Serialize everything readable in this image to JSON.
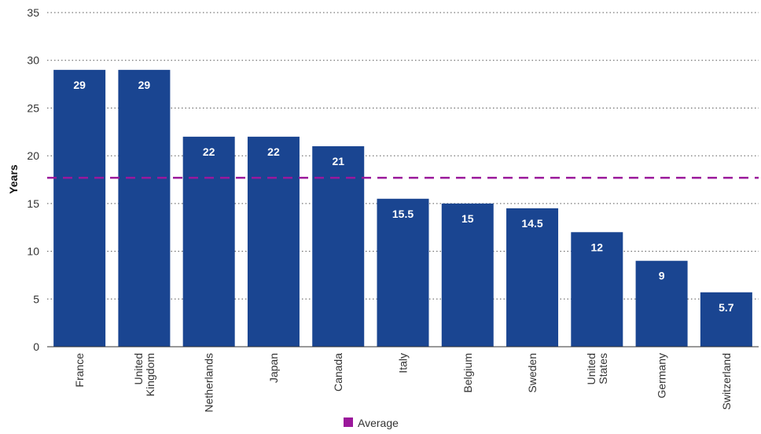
{
  "chart_data": {
    "type": "bar",
    "categories": [
      "France",
      "United Kingdom",
      "Netherlands",
      "Japan",
      "Canada",
      "Italy",
      "Belgium",
      "Sweden",
      "United States",
      "Germany",
      "Switzerland"
    ],
    "category_lines": [
      [
        "France"
      ],
      [
        "United",
        "Kingdom"
      ],
      [
        "Netherlands"
      ],
      [
        "Japan"
      ],
      [
        "Canada"
      ],
      [
        "Italy"
      ],
      [
        "Belgium"
      ],
      [
        "Sweden"
      ],
      [
        "United",
        "States"
      ],
      [
        "Germany"
      ],
      [
        "Switzerland"
      ]
    ],
    "values": [
      29,
      29,
      22,
      22,
      21,
      15.5,
      15,
      14.5,
      12,
      9,
      5.7
    ],
    "value_labels": [
      "29",
      "29",
      "22",
      "22",
      "21",
      "15.5",
      "15",
      "14.5",
      "12",
      "9",
      "5.7"
    ],
    "average": 17.7,
    "ylabel": "Years",
    "ylim": [
      0,
      35
    ],
    "yticks": [
      0,
      5,
      10,
      15,
      20,
      25,
      30,
      35
    ],
    "grid": true,
    "legend": {
      "position": "bottom-center",
      "entries": [
        {
          "name": "Average",
          "color": "#9b189b"
        }
      ]
    },
    "colors": {
      "bar": "#1a4591",
      "average_line": "#9b189b",
      "grid": "#555555"
    }
  }
}
